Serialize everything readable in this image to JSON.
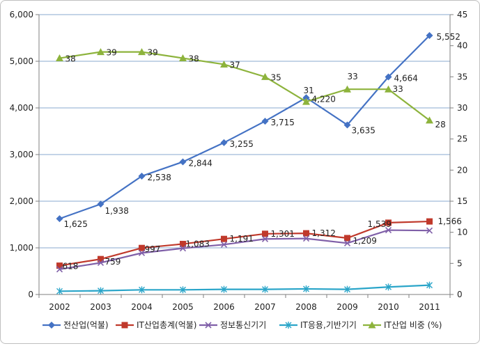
{
  "chart_data": {
    "type": "line",
    "title": "",
    "xlabel": "",
    "ylabel": "",
    "categories": [
      "2002",
      "2003",
      "2004",
      "2005",
      "2006",
      "2007",
      "2008",
      "2009",
      "2010",
      "2011"
    ],
    "ylim": [
      0,
      6000
    ],
    "y2lim": [
      0,
      45
    ],
    "y_ticks": [
      "0",
      "1,000",
      "2,000",
      "3,000",
      "4,000",
      "5,000",
      "6,000"
    ],
    "y2_ticks": [
      "0",
      "5",
      "10",
      "15",
      "20",
      "25",
      "30",
      "35",
      "40",
      "45"
    ],
    "grid": true,
    "legend_position": "bottom",
    "series": [
      {
        "name": "전산업(억불)",
        "axis": "left",
        "marker": "diamond",
        "color": "#4472c4",
        "values": [
          1625,
          1938,
          2538,
          2844,
          3255,
          3715,
          4220,
          3635,
          4664,
          5552
        ],
        "labels": [
          "1,625",
          "1,938",
          "2,538",
          "2,844",
          "3,255",
          "3,715",
          "4,220",
          "3,635",
          "4,664",
          "5,552"
        ]
      },
      {
        "name": "IT산업총계(억불)",
        "axis": "left",
        "marker": "square",
        "color": "#c0392b",
        "values": [
          618,
          759,
          997,
          1083,
          1191,
          1301,
          1312,
          1209,
          1539,
          1566
        ],
        "labels": [
          "618",
          "759",
          "997",
          "1,083",
          "1,191",
          "1,301",
          "1,312",
          "1,209",
          "1,539",
          "1,566"
        ]
      },
      {
        "name": "정보통신기기",
        "axis": "left",
        "marker": "x",
        "color": "#7f5fa8",
        "values": [
          540,
          680,
          890,
          990,
          1070,
          1190,
          1200,
          1100,
          1380,
          1370
        ],
        "labels": []
      },
      {
        "name": "IT응용,기반기기",
        "axis": "left",
        "marker": "star",
        "color": "#2aa5c9",
        "values": [
          70,
          80,
          100,
          100,
          110,
          110,
          120,
          110,
          160,
          200
        ],
        "labels": []
      },
      {
        "name": "IT산업 비중 (%)",
        "axis": "right",
        "marker": "triangle",
        "color": "#8db33c",
        "values": [
          38,
          39,
          39,
          38,
          37,
          35,
          31,
          33,
          33,
          28
        ],
        "labels": [
          "38",
          "39",
          "39",
          "38",
          "37",
          "35",
          "31",
          "33",
          "33",
          "28"
        ]
      }
    ]
  }
}
